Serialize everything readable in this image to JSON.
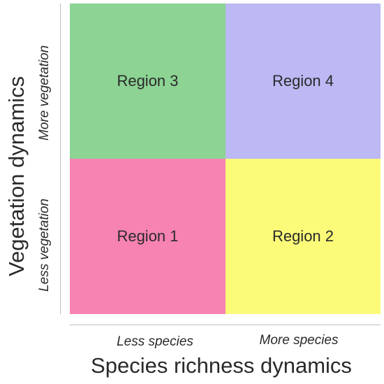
{
  "regions": [
    {
      "label": "Region 3",
      "color": "#8dd394"
    },
    {
      "label": "Region 4",
      "color": "#bcb9f4"
    },
    {
      "label": "Region 1",
      "color": "#f783b2"
    },
    {
      "label": "Region 2",
      "color": "#fbfb79"
    }
  ],
  "y_axis": {
    "title": "Vegetation dynamics",
    "high_label": "More vegetation",
    "low_label": "Less vegetation"
  },
  "x_axis": {
    "title": "Species richness dynamics",
    "low_label": "Less species",
    "high_label": "More species"
  },
  "axis_line_color": "#bdbdbd"
}
